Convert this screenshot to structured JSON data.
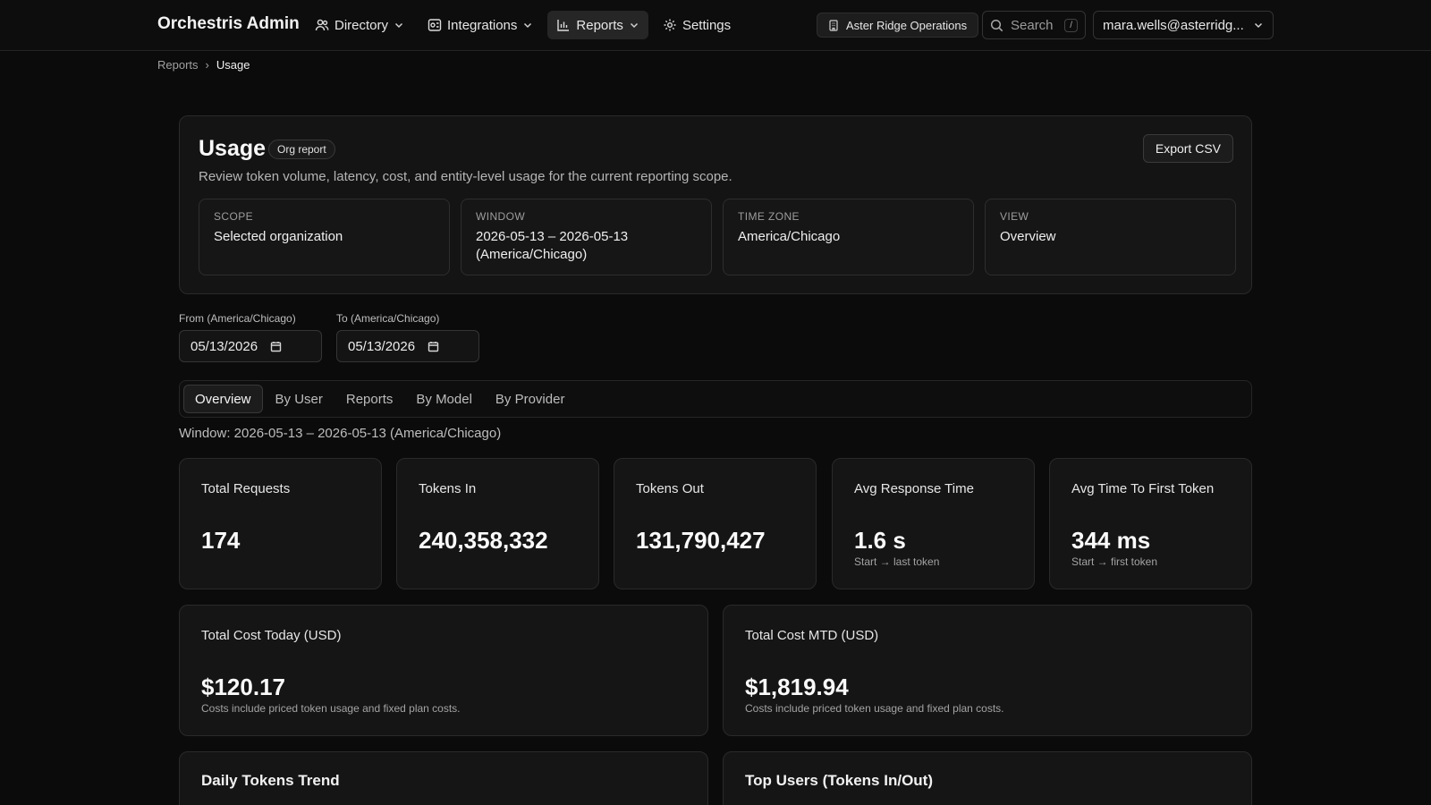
{
  "app": {
    "title": "Orchestris Admin"
  },
  "nav": {
    "items": [
      {
        "label": "Directory",
        "icon": "users-icon",
        "has_chevron": true
      },
      {
        "label": "Integrations",
        "icon": "integrations-icon",
        "has_chevron": true
      },
      {
        "label": "Reports",
        "icon": "bar-chart-icon",
        "has_chevron": true,
        "active": true
      },
      {
        "label": "Settings",
        "icon": "gear-icon",
        "has_chevron": false
      }
    ]
  },
  "org": {
    "name": "Aster Ridge Operations",
    "icon": "building-icon"
  },
  "search": {
    "placeholder": "Search",
    "shortcut": "/"
  },
  "account": {
    "email": "mara.wells@asterridg..."
  },
  "breadcrumb": {
    "parent": "Reports",
    "separator": "›",
    "current": "Usage"
  },
  "header": {
    "title": "Usage",
    "badge": "Org report",
    "description": "Review token volume, latency, cost, and entity-level usage for the current reporting scope.",
    "export_label": "Export CSV"
  },
  "meta": [
    {
      "key": "SCOPE",
      "value": "Selected organization"
    },
    {
      "key": "WINDOW",
      "value": "2026-05-13 – 2026-05-13 (America/Chicago)"
    },
    {
      "key": "TIME ZONE",
      "value": "America/Chicago"
    },
    {
      "key": "VIEW",
      "value": "Overview"
    }
  ],
  "filters": {
    "from_label": "From (America/Chicago)",
    "from_value": "05/13/2026",
    "to_label": "To (America/Chicago)",
    "to_value": "05/13/2026"
  },
  "tabs": [
    {
      "label": "Overview",
      "active": true
    },
    {
      "label": "By User"
    },
    {
      "label": "Reports"
    },
    {
      "label": "By Model"
    },
    {
      "label": "By Provider"
    }
  ],
  "window_line": "Window: 2026-05-13 – 2026-05-13 (America/Chicago)",
  "stats": [
    {
      "label": "Total Requests",
      "value": "174",
      "sub": ""
    },
    {
      "label": "Tokens In",
      "value": "240,358,332",
      "sub": ""
    },
    {
      "label": "Tokens Out",
      "value": "131,790,427",
      "sub": ""
    },
    {
      "label": "Avg Response Time",
      "value": "1.6 s",
      "sub": "Start → last token"
    },
    {
      "label": "Avg Time To First Token",
      "value": "344 ms",
      "sub": "Start → first token"
    }
  ],
  "costs": [
    {
      "label": "Total Cost Today (USD)",
      "value": "$120.17",
      "sub": "Costs include priced token usage and fixed plan costs."
    },
    {
      "label": "Total Cost MTD (USD)",
      "value": "$1,819.94",
      "sub": "Costs include priced token usage and fixed plan costs."
    }
  ],
  "panels": [
    {
      "title": "Daily Tokens Trend"
    },
    {
      "title": "Top Users (Tokens In/Out)"
    }
  ],
  "colors": {
    "background": "#0b0b0b",
    "card": "#141414",
    "border": "#2a2a2a",
    "text": "#ececec",
    "muted": "#a3a3a3"
  }
}
